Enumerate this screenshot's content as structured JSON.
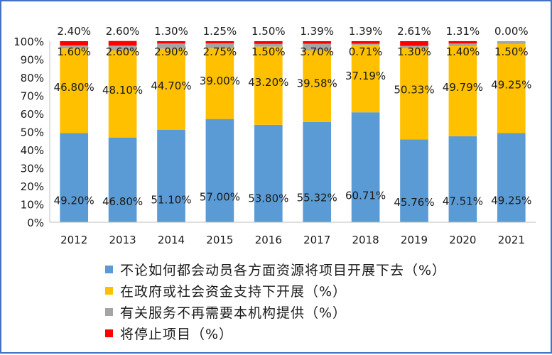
{
  "chart_data": {
    "type": "bar",
    "stacked": true,
    "categories": [
      "2012",
      "2013",
      "2014",
      "2015",
      "2016",
      "2017",
      "2018",
      "2019",
      "2020",
      "2021"
    ],
    "ylim": [
      0,
      100
    ],
    "y_ticks": [
      "0%",
      "10%",
      "20%",
      "30%",
      "40%",
      "50%",
      "60%",
      "70%",
      "80%",
      "90%",
      "100%"
    ],
    "grid": false,
    "legend_placement": "bottom",
    "series": [
      {
        "name": "不论如何都会动员各方面资源将项目开展下去（%",
        "color": "#5b9bd5",
        "values": [
          49.2,
          46.8,
          51.1,
          57.0,
          53.8,
          55.32,
          60.71,
          45.76,
          47.51,
          49.25
        ],
        "labels": [
          "49.20%",
          "46.80%",
          "51.10%",
          "57.00%",
          "53.80%",
          "55.32%",
          "60.71%",
          "45.76%",
          "47.51%",
          "49.25%"
        ]
      },
      {
        "name": "在政府或社会资金支持下开展（%",
        "color": "#ffc000",
        "values": [
          46.8,
          48.1,
          44.7,
          39.0,
          43.2,
          39.58,
          37.19,
          50.33,
          49.79,
          49.25
        ],
        "labels": [
          "46.80%",
          "48.10%",
          "44.70%",
          "39.00%",
          "43.20%",
          "39.58%",
          "37.19%",
          "50.33%",
          "49.79%",
          "49.25%"
        ]
      },
      {
        "name": "有关服务不再需要本机构提供（%",
        "color": "#a5a5a5",
        "values": [
          1.6,
          2.6,
          2.9,
          2.75,
          1.5,
          3.7,
          0.71,
          1.3,
          1.4,
          1.5
        ],
        "labels": [
          "1.60%",
          "2.60%",
          "2.90%",
          "2.75%",
          "1.50%",
          "3.70%",
          "0.71%",
          "1.30%",
          "1.40%",
          "1.50%"
        ]
      },
      {
        "name": "将停止项目（%",
        "color": "#ff0000",
        "values": [
          2.4,
          2.6,
          1.3,
          1.25,
          1.5,
          1.39,
          1.39,
          2.61,
          1.31,
          0.0
        ],
        "labels": [
          "2.40%",
          "2.60%",
          "1.30%",
          "1.25%",
          "1.50%",
          "1.39%",
          "1.39%",
          "2.61%",
          "1.31%",
          "0.00%"
        ]
      }
    ],
    "legend_suffix": "）"
  }
}
